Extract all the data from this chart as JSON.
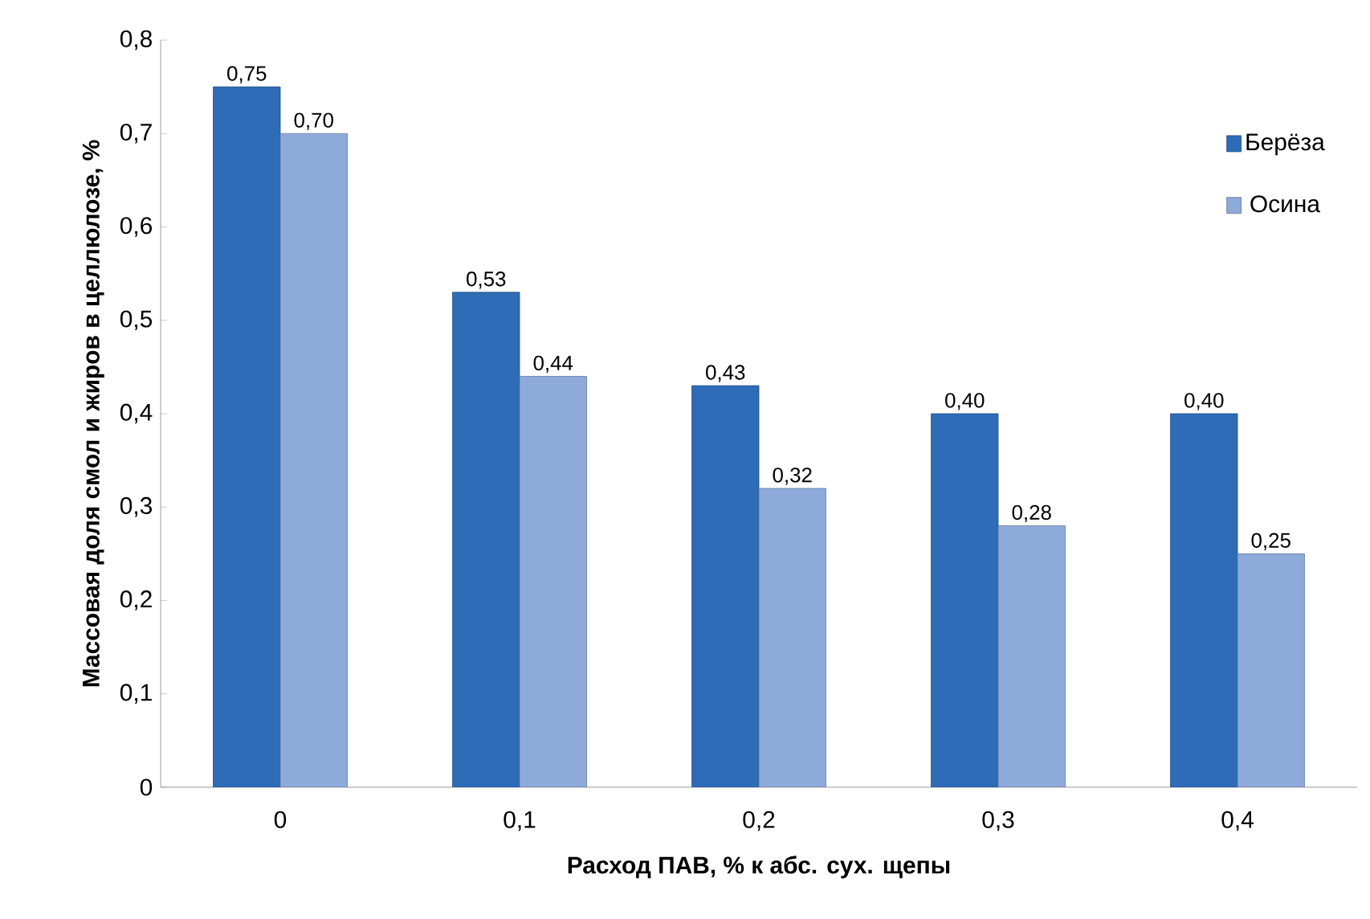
{
  "chart_data": {
    "type": "bar",
    "xlabel": "Расход ПАВ, % к абс. сух. щепы",
    "ylabel": "Массовая доля смол и жиров в целлюлозе, %",
    "categories": [
      "0",
      "0,1",
      "0,2",
      "0,3",
      "0,4"
    ],
    "series": [
      {
        "name": "Берёза",
        "color": "#2e6cb8",
        "values": [
          0.75,
          0.53,
          0.43,
          0.4,
          0.4
        ],
        "value_labels": [
          "0,75",
          "0,53",
          "0,43",
          "0,40",
          "0,40"
        ]
      },
      {
        "name": "Осина",
        "color": "#8eaadb",
        "values": [
          0.7,
          0.44,
          0.32,
          0.28,
          0.25
        ],
        "value_labels": [
          "0,70",
          "0,44",
          "0,32",
          "0,28",
          "0,25"
        ]
      }
    ],
    "ylim": [
      0,
      0.8
    ],
    "yticks": [
      0,
      {
        "value": 0.1,
        "label": "0,1"
      },
      {
        "value": 0.2,
        "label": "0,2"
      },
      {
        "value": 0.3,
        "label": "0,3"
      },
      {
        "value": 0.4,
        "label": "0,4"
      },
      {
        "value": 0.5,
        "label": "0,5"
      },
      {
        "value": 0.6,
        "label": "0,6"
      },
      {
        "value": 0.7,
        "label": "0,7"
      },
      {
        "value": 0.8,
        "label": "0,8"
      }
    ],
    "grid": false,
    "legend": "top right"
  }
}
